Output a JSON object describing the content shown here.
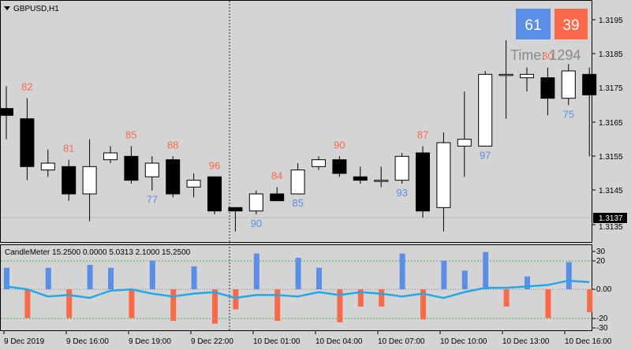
{
  "colors": {
    "bg": "#d4d4d4",
    "bull_body": "#ffffff",
    "bear_body": "#000000",
    "wick": "#000000",
    "bull_label": "#5b8ee6",
    "bear_label": "#fa6a4a",
    "meter_line": "#24a8e8",
    "grid_dotted": "#4caf50",
    "text": "#000000"
  },
  "main": {
    "symbol_label": "GBPUSD,H1",
    "price_scale": [
      "1.3195",
      "1.3185",
      "1.3175",
      "1.3165",
      "1.3155",
      "1.3145",
      "1.3135"
    ],
    "current_price": "1.3137",
    "badges": {
      "bull": "61",
      "bear": "39"
    },
    "time_label": "Time: 1294",
    "menu_icon": "triangle-down-icon"
  },
  "candles": [
    {
      "o": 1.3169,
      "h": 1.31755,
      "l": 1.316,
      "c": 1.3167
    },
    {
      "o": 1.3166,
      "h": 1.3172,
      "l": 1.3148,
      "c": 1.3152
    },
    {
      "o": 1.3151,
      "h": 1.3157,
      "l": 1.3149,
      "c": 1.3153
    },
    {
      "o": 1.3152,
      "h": 1.3154,
      "l": 1.3142,
      "c": 1.3144
    },
    {
      "o": 1.3144,
      "h": 1.316,
      "l": 1.3136,
      "c": 1.3152
    },
    {
      "o": 1.3154,
      "h": 1.3158,
      "l": 1.3153,
      "c": 1.3156
    },
    {
      "o": 1.3155,
      "h": 1.3158,
      "l": 1.3147,
      "c": 1.3148
    },
    {
      "o": 1.3149,
      "h": 1.3155,
      "l": 1.3145,
      "c": 1.3153
    },
    {
      "o": 1.3154,
      "h": 1.3155,
      "l": 1.3143,
      "c": 1.3144
    },
    {
      "o": 1.3146,
      "h": 1.315,
      "l": 1.3143,
      "c": 1.3148
    },
    {
      "o": 1.3149,
      "h": 1.3149,
      "l": 1.3138,
      "c": 1.3139
    },
    {
      "o": 1.314,
      "h": 1.314,
      "l": 1.3133,
      "c": 1.3139
    },
    {
      "o": 1.3139,
      "h": 1.3145,
      "l": 1.3138,
      "c": 1.3144
    },
    {
      "o": 1.3144,
      "h": 1.3146,
      "l": 1.3142,
      "c": 1.3142
    },
    {
      "o": 1.3144,
      "h": 1.3153,
      "l": 1.3144,
      "c": 1.3151
    },
    {
      "o": 1.3152,
      "h": 1.3155,
      "l": 1.3151,
      "c": 1.3154
    },
    {
      "o": 1.3154,
      "h": 1.3155,
      "l": 1.3149,
      "c": 1.315
    },
    {
      "o": 1.3149,
      "h": 1.3152,
      "l": 1.3147,
      "c": 1.3148
    },
    {
      "o": 1.3148,
      "h": 1.3152,
      "l": 1.3146,
      "c": 1.3148
    },
    {
      "o": 1.3148,
      "h": 1.3156,
      "l": 1.3147,
      "c": 1.3155
    },
    {
      "o": 1.3156,
      "h": 1.3158,
      "l": 1.3137,
      "c": 1.3139
    },
    {
      "o": 1.314,
      "h": 1.3162,
      "l": 1.3133,
      "c": 1.3159
    },
    {
      "o": 1.3158,
      "h": 1.3174,
      "l": 1.3149,
      "c": 1.316
    },
    {
      "o": 1.3158,
      "h": 1.318,
      "l": 1.3158,
      "c": 1.3179
    },
    {
      "o": 1.3179,
      "h": 1.3189,
      "l": 1.3166,
      "c": 1.3179
    },
    {
      "o": 1.3178,
      "h": 1.3181,
      "l": 1.3174,
      "c": 1.3179
    },
    {
      "o": 1.3178,
      "h": 1.3181,
      "l": 1.3167,
      "c": 1.3172
    },
    {
      "o": 1.3172,
      "h": 1.3182,
      "l": 1.317,
      "c": 1.318
    },
    {
      "o": 1.3179,
      "h": 1.3181,
      "l": 1.3155,
      "c": 1.3173
    }
  ],
  "candle_labels": [
    {
      "i": 1,
      "text": "82",
      "kind": "bear",
      "pos": "above"
    },
    {
      "i": 3,
      "text": "81",
      "kind": "bear",
      "pos": "above"
    },
    {
      "i": 6,
      "text": "85",
      "kind": "bear",
      "pos": "above"
    },
    {
      "i": 7,
      "text": "77",
      "kind": "bull",
      "pos": "below"
    },
    {
      "i": 8,
      "text": "88",
      "kind": "bear",
      "pos": "above"
    },
    {
      "i": 10,
      "text": "96",
      "kind": "bear",
      "pos": "above"
    },
    {
      "i": 12,
      "text": "90",
      "kind": "bull",
      "pos": "below"
    },
    {
      "i": 13,
      "text": "84",
      "kind": "bear",
      "pos": "above"
    },
    {
      "i": 14,
      "text": "85",
      "kind": "bull",
      "pos": "below"
    },
    {
      "i": 16,
      "text": "90",
      "kind": "bear",
      "pos": "above"
    },
    {
      "i": 19,
      "text": "93",
      "kind": "bull",
      "pos": "below"
    },
    {
      "i": 20,
      "text": "87",
      "kind": "bear",
      "pos": "above"
    },
    {
      "i": 23,
      "text": "97",
      "kind": "bull",
      "pos": "below"
    },
    {
      "i": 26,
      "text": "80",
      "kind": "bear",
      "pos": "above"
    },
    {
      "i": 27,
      "text": "75",
      "kind": "bull",
      "pos": "below"
    }
  ],
  "meter": {
    "label": "CandleMeter 15.2500 0.0000 5.0313 2.1000 15.2500",
    "scale": [
      "30",
      "20",
      "0.00",
      "-20",
      "-30"
    ],
    "bars": [
      {
        "up": 15,
        "down": 0
      },
      {
        "up": 0,
        "down": -20
      },
      {
        "up": 15,
        "down": 0
      },
      {
        "up": 0,
        "down": -20
      },
      {
        "up": 17,
        "down": 0
      },
      {
        "up": 15,
        "down": 0
      },
      {
        "up": 0,
        "down": -20
      },
      {
        "up": 20,
        "down": 0
      },
      {
        "up": 0,
        "down": -22
      },
      {
        "up": 16,
        "down": 0
      },
      {
        "up": 0,
        "down": -24
      },
      {
        "up": 0,
        "down": -14
      },
      {
        "up": 25,
        "down": 0
      },
      {
        "up": 0,
        "down": -22
      },
      {
        "up": 22,
        "down": 0
      },
      {
        "up": 15,
        "down": 0
      },
      {
        "up": 0,
        "down": -23
      },
      {
        "up": 0,
        "down": -12
      },
      {
        "up": 0,
        "down": -12
      },
      {
        "up": 25,
        "down": 0
      },
      {
        "up": 0,
        "down": -21
      },
      {
        "up": 20,
        "down": 0
      },
      {
        "up": 13,
        "down": 0
      },
      {
        "up": 26,
        "down": 0
      },
      {
        "up": 0,
        "down": -12
      },
      {
        "up": 9,
        "down": 0
      },
      {
        "up": 0,
        "down": -20
      },
      {
        "up": 19,
        "down": 0
      },
      {
        "up": 0,
        "down": -16
      }
    ],
    "line": [
      2,
      0,
      -5,
      -4,
      -6,
      -1,
      0,
      -3,
      -5,
      -3,
      -2,
      -6,
      -4,
      -4,
      -5,
      -2,
      -4,
      -2,
      -3,
      -5,
      -3,
      -6,
      -2,
      1,
      1,
      2,
      3,
      6,
      5
    ]
  },
  "xaxis": [
    "9 Dec 2019",
    "9 Dec 16:00",
    "9 Dec 19:00",
    "9 Dec 22:00",
    "10 Dec 01:00",
    "10 Dec 04:00",
    "10 Dec 07:00",
    "10 Dec 10:00",
    "10 Dec 13:00",
    "10 Dec 16:00"
  ]
}
